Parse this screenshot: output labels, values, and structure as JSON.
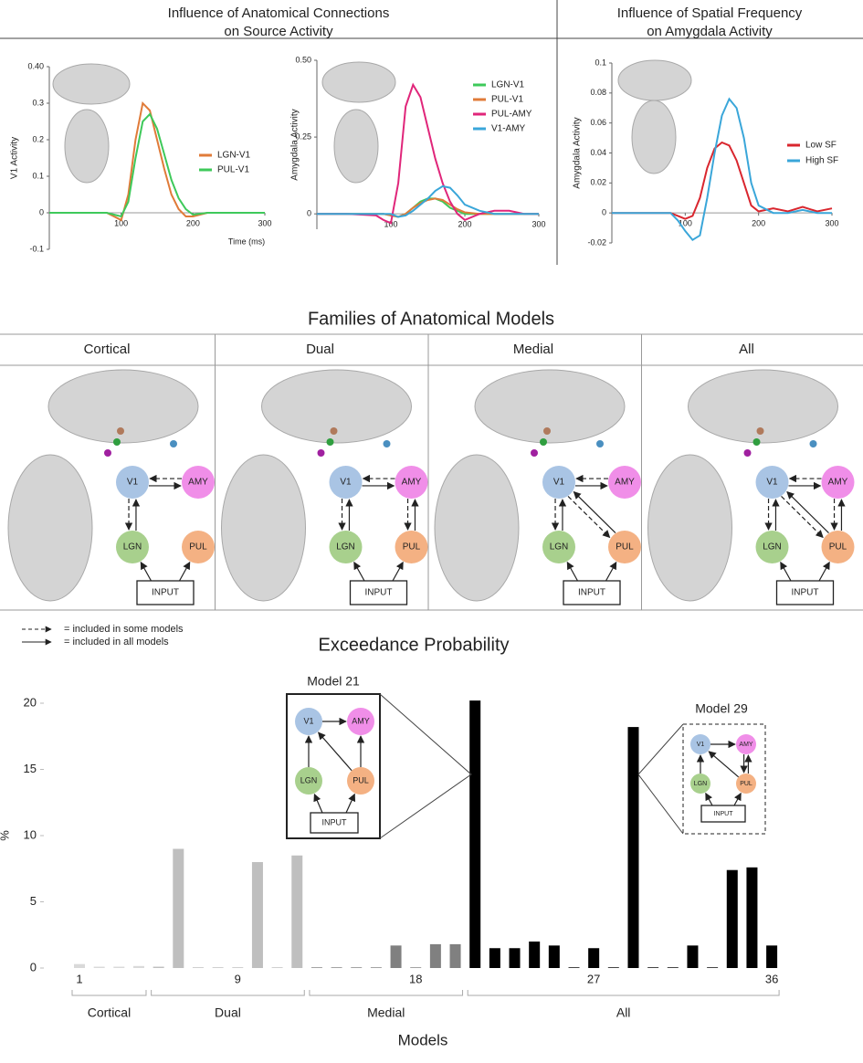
{
  "chart_data": [
    {
      "type": "line",
      "title": [
        "Influence of Anatomical Connections",
        "on Source Activity"
      ],
      "ylabel": "V1 Activity",
      "xlabel": "Time (ms)",
      "x": [
        0,
        40,
        80,
        90,
        100,
        110,
        120,
        130,
        140,
        150,
        160,
        170,
        180,
        190,
        200,
        220,
        240,
        260,
        280,
        300
      ],
      "xlim": [
        0,
        300
      ],
      "xticks": [
        100,
        200,
        300
      ],
      "ylim": [
        -0.1,
        0.4
      ],
      "yticks": [
        -0.1,
        0,
        0.1,
        0.2,
        0.3,
        {
          "value": 0.4,
          "label": "0.40"
        }
      ],
      "series": [
        {
          "name": "LGN-V1",
          "color": "#e07b39",
          "values": [
            0,
            0,
            0,
            -0.01,
            -0.02,
            0.05,
            0.2,
            0.3,
            0.28,
            0.2,
            0.12,
            0.05,
            0.01,
            -0.01,
            -0.01,
            0,
            0,
            0,
            0,
            0
          ]
        },
        {
          "name": "PUL-V1",
          "color": "#3ec95a",
          "values": [
            0,
            0,
            0,
            -0.005,
            -0.01,
            0.03,
            0.15,
            0.25,
            0.27,
            0.23,
            0.16,
            0.09,
            0.04,
            0.01,
            -0.005,
            0,
            0,
            0,
            0,
            0
          ]
        }
      ]
    },
    {
      "type": "line",
      "ylabel": "Amygdala Activity",
      "x": [
        0,
        40,
        80,
        90,
        100,
        110,
        120,
        130,
        140,
        150,
        160,
        170,
        180,
        190,
        200,
        220,
        240,
        260,
        280,
        300
      ],
      "xlim": [
        0,
        300
      ],
      "xticks": [
        100,
        200,
        300
      ],
      "ylim": [
        -0.05,
        0.5
      ],
      "yticks": [
        0,
        0.25,
        {
          "value": 0.5,
          "label": "0.50"
        }
      ],
      "series": [
        {
          "name": "LGN-V1",
          "color": "#3ec95a",
          "values": [
            0,
            0,
            0,
            0,
            -0.005,
            -0.01,
            0,
            0.02,
            0.04,
            0.05,
            0.05,
            0.04,
            0.02,
            0.01,
            0,
            0,
            0,
            0,
            0,
            0
          ]
        },
        {
          "name": "PUL-V1",
          "color": "#e07b39",
          "values": [
            0,
            0,
            0,
            0,
            -0.005,
            -0.01,
            0,
            0.02,
            0.035,
            0.045,
            0.05,
            0.045,
            0.03,
            0.015,
            0.005,
            0,
            0,
            0,
            0,
            0
          ]
        },
        {
          "name": "PUL-AMY",
          "color": "#e0267a",
          "values": [
            0,
            0,
            -0.005,
            -0.02,
            -0.03,
            0.1,
            0.35,
            0.42,
            0.38,
            0.28,
            0.18,
            0.1,
            0.04,
            0,
            -0.02,
            0,
            0.01,
            0.01,
            0,
            0
          ]
        },
        {
          "name": "V1-AMY",
          "color": "#3aa6d9",
          "values": [
            0,
            0,
            0,
            0,
            0,
            -0.01,
            -0.005,
            0.01,
            0.03,
            0.05,
            0.075,
            0.09,
            0.085,
            0.06,
            0.03,
            0.01,
            0,
            0,
            0,
            0
          ]
        }
      ]
    },
    {
      "type": "line",
      "title": [
        "Influence of Spatial Frequency",
        "on Amygdala Activity"
      ],
      "ylabel": "Amygdala Activity",
      "x": [
        0,
        40,
        80,
        90,
        100,
        110,
        120,
        130,
        140,
        150,
        160,
        170,
        180,
        190,
        200,
        220,
        240,
        260,
        280,
        300
      ],
      "xlim": [
        0,
        300
      ],
      "xticks": [
        100,
        200,
        300
      ],
      "ylim": [
        -0.02,
        0.1
      ],
      "yticks": [
        -0.02,
        0,
        0.02,
        0.04,
        0.06,
        0.08,
        0.1
      ],
      "series": [
        {
          "name": "Low SF",
          "color": "#d9262e",
          "values": [
            0,
            0,
            0,
            -0.002,
            -0.004,
            -0.002,
            0.01,
            0.03,
            0.043,
            0.047,
            0.045,
            0.035,
            0.02,
            0.005,
            0.001,
            0.003,
            0.001,
            0.004,
            0.001,
            0.003
          ]
        },
        {
          "name": "High SF",
          "color": "#3aa6d9",
          "values": [
            0,
            0,
            0,
            -0.005,
            -0.012,
            -0.018,
            -0.015,
            0.01,
            0.04,
            0.065,
            0.076,
            0.07,
            0.05,
            0.02,
            0.005,
            0,
            0,
            0.002,
            0,
            0
          ]
        }
      ]
    },
    {
      "type": "bar",
      "title": "Exceedance Probability",
      "ylabel": "%",
      "xlabel": "Models",
      "categories": [
        "1",
        null,
        null,
        null,
        null,
        null,
        null,
        null,
        "9",
        null,
        null,
        null,
        null,
        null,
        null,
        null,
        null,
        "18",
        null,
        null,
        null,
        null,
        null,
        null,
        null,
        null,
        "27",
        null,
        null,
        null,
        null,
        null,
        null,
        null,
        null,
        "36"
      ],
      "values": [
        0.3,
        0.1,
        0.1,
        0.15,
        0.1,
        9,
        0.05,
        0.05,
        0.05,
        8,
        0.05,
        8.5,
        0.05,
        0.05,
        0.05,
        0.05,
        1.7,
        0.05,
        1.8,
        1.8,
        20.2,
        1.5,
        1.5,
        2,
        1.7,
        0.05,
        1.5,
        0.05,
        18.2,
        0.05,
        0.05,
        1.7,
        0.05,
        7.4,
        7.6,
        1.7
      ],
      "colors": [
        "#d9d9d9",
        "#d9d9d9",
        "#d9d9d9",
        "#d9d9d9",
        "#bfbfbf",
        "#bfbfbf",
        "#bfbfbf",
        "#bfbfbf",
        "#bfbfbf",
        "#bfbfbf",
        "#bfbfbf",
        "#bfbfbf",
        "#808080",
        "#808080",
        "#808080",
        "#808080",
        "#808080",
        "#808080",
        "#808080",
        "#808080",
        "#000000",
        "#000000",
        "#000000",
        "#000000",
        "#000000",
        "#000000",
        "#000000",
        "#000000",
        "#000000",
        "#000000",
        "#000000",
        "#000000",
        "#000000",
        "#000000",
        "#000000",
        "#000000"
      ],
      "ylim": [
        0,
        21
      ],
      "yticks": [
        0,
        5,
        10,
        15,
        20
      ],
      "group_labels": [
        "Cortical",
        "Dual",
        "Medial",
        "All"
      ],
      "insets": [
        {
          "title": "Model 21"
        },
        {
          "title": "Model 29"
        }
      ]
    }
  ],
  "families": {
    "title": "Families of Anatomical Models",
    "names": [
      "Cortical",
      "Dual",
      "Medial",
      "All"
    ],
    "legend": [
      "= included in some models",
      "= included in all models"
    ]
  },
  "nodes": [
    "V1",
    "AMY",
    "LGN",
    "PUL"
  ],
  "input": "INPUT"
}
